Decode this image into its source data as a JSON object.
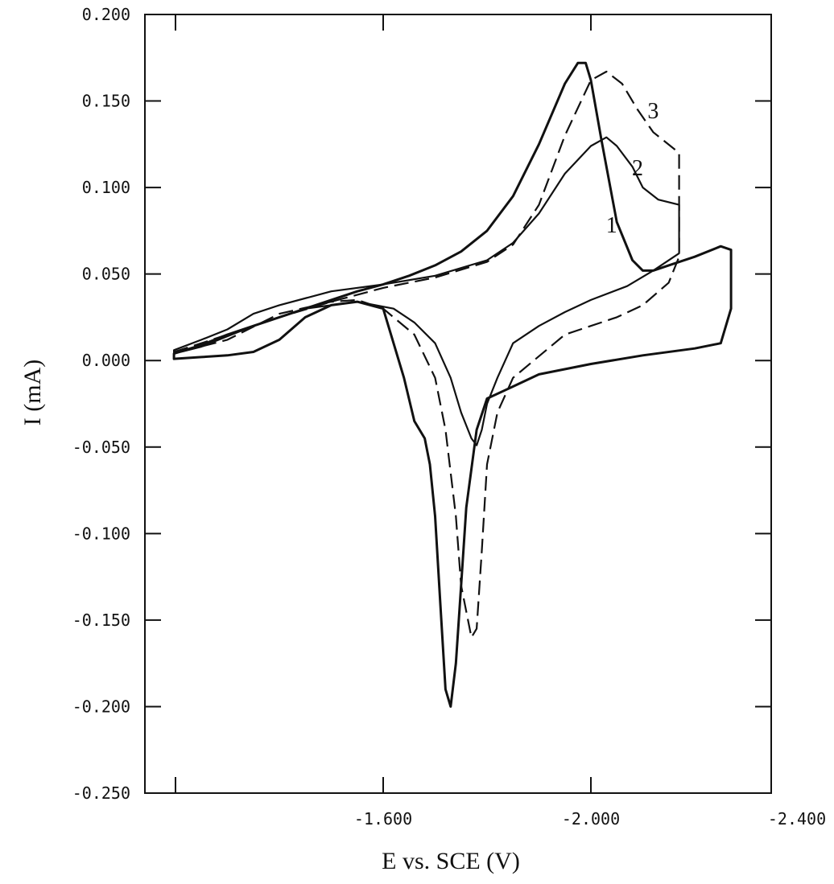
{
  "chart_data": {
    "type": "line",
    "title": "",
    "xlabel": "E vs. SCE (V)",
    "ylabel": "I (mA)",
    "xlim": [
      -1.2,
      -2.4
    ],
    "ylim": [
      -0.25,
      0.2
    ],
    "x_ticks": [
      -1.6,
      -2.0,
      -2.4
    ],
    "x_tick_labels": [
      "-1.600",
      "-2.000",
      "-2.400"
    ],
    "y_ticks": [
      0.2,
      0.15,
      0.1,
      0.05,
      0.0,
      -0.05,
      -0.1,
      -0.15,
      -0.2,
      -0.25
    ],
    "y_tick_labels": [
      "0.200",
      "0.150",
      "0.100",
      "0.050",
      "0.000",
      "-0.050",
      "-0.100",
      "-0.150",
      "-0.200",
      "-0.250"
    ],
    "grid": false,
    "series": [
      {
        "name": "1",
        "style": "solid",
        "color": "#111111",
        "x": [
          -1.197,
          -1.25,
          -1.3,
          -1.35,
          -1.4,
          -1.45,
          -1.5,
          -1.55,
          -1.6,
          -1.65,
          -1.7,
          -1.75,
          -1.8,
          -1.85,
          -1.9,
          -1.95,
          -1.975,
          -1.99,
          -2.0,
          -2.02,
          -2.05,
          -2.08,
          -2.1,
          -2.12,
          -2.15,
          -2.2,
          -2.25,
          -2.27,
          -2.27,
          -2.25,
          -2.2,
          -2.1,
          -2.0,
          -1.9,
          -1.85,
          -1.8,
          -1.78,
          -1.76,
          -1.75,
          -1.74,
          -1.73,
          -1.72,
          -1.71,
          -1.7,
          -1.69,
          -1.68,
          -1.66,
          -1.64,
          -1.6,
          -1.55,
          -1.5,
          -1.45,
          -1.4,
          -1.35,
          -1.3,
          -1.25,
          -1.197
        ],
        "y": [
          0.004,
          0.009,
          0.015,
          0.02,
          0.025,
          0.03,
          0.035,
          0.04,
          0.044,
          0.049,
          0.055,
          0.063,
          0.075,
          0.095,
          0.125,
          0.16,
          0.172,
          0.172,
          0.162,
          0.128,
          0.08,
          0.058,
          0.052,
          0.052,
          0.055,
          0.06,
          0.066,
          0.064,
          0.03,
          0.01,
          0.007,
          0.003,
          -0.002,
          -0.008,
          -0.015,
          -0.022,
          -0.04,
          -0.085,
          -0.13,
          -0.175,
          -0.2,
          -0.19,
          -0.14,
          -0.09,
          -0.06,
          -0.045,
          -0.035,
          -0.01,
          0.03,
          0.034,
          0.032,
          0.025,
          0.012,
          0.005,
          0.003,
          0.002,
          0.001
        ]
      },
      {
        "name": "2",
        "style": "solid",
        "color": "#111111",
        "x": [
          -1.197,
          -1.25,
          -1.3,
          -1.35,
          -1.4,
          -1.5,
          -1.6,
          -1.7,
          -1.8,
          -1.85,
          -1.9,
          -1.95,
          -2.0,
          -2.03,
          -2.05,
          -2.08,
          -2.1,
          -2.13,
          -2.17,
          -2.17,
          -2.12,
          -2.07,
          -2.0,
          -1.95,
          -1.9,
          -1.85,
          -1.82,
          -1.8,
          -1.79,
          -1.78,
          -1.77,
          -1.75,
          -1.73,
          -1.7,
          -1.66,
          -1.62,
          -1.55,
          -1.45,
          -1.35,
          -1.25,
          -1.197
        ],
        "y": [
          0.006,
          0.012,
          0.018,
          0.027,
          0.032,
          0.04,
          0.044,
          0.049,
          0.058,
          0.068,
          0.085,
          0.108,
          0.124,
          0.129,
          0.124,
          0.112,
          0.1,
          0.093,
          0.09,
          0.062,
          0.052,
          0.043,
          0.035,
          0.028,
          0.02,
          0.01,
          -0.01,
          -0.025,
          -0.04,
          -0.049,
          -0.045,
          -0.03,
          -0.01,
          0.01,
          0.022,
          0.03,
          0.034,
          0.03,
          0.02,
          0.008,
          0.004
        ]
      },
      {
        "name": "3",
        "style": "dashed",
        "color": "#111111",
        "x": [
          -1.197,
          -1.25,
          -1.3,
          -1.4,
          -1.5,
          -1.6,
          -1.7,
          -1.8,
          -1.85,
          -1.9,
          -1.95,
          -2.0,
          -2.03,
          -2.06,
          -2.09,
          -2.12,
          -2.17,
          -2.17,
          -2.15,
          -2.1,
          -2.05,
          -1.95,
          -1.85,
          -1.82,
          -1.8,
          -1.79,
          -1.78,
          -1.77,
          -1.76,
          -1.75,
          -1.74,
          -1.72,
          -1.7,
          -1.66,
          -1.6,
          -1.55,
          -1.5,
          -1.4,
          -1.3,
          -1.197
        ],
        "y": [
          0.005,
          0.01,
          0.015,
          0.025,
          0.034,
          0.042,
          0.048,
          0.057,
          0.067,
          0.09,
          0.13,
          0.162,
          0.167,
          0.16,
          0.145,
          0.132,
          0.12,
          0.06,
          0.045,
          0.032,
          0.025,
          0.015,
          -0.01,
          -0.03,
          -0.06,
          -0.11,
          -0.155,
          -0.16,
          -0.145,
          -0.13,
          -0.09,
          -0.04,
          -0.01,
          0.015,
          0.03,
          0.035,
          0.034,
          0.027,
          0.012,
          0.004
        ]
      }
    ],
    "curve_labels": [
      {
        "text": "1",
        "x": -2.04,
        "y": 0.074
      },
      {
        "text": "2",
        "x": -2.09,
        "y": 0.107
      },
      {
        "text": "3",
        "x": -2.12,
        "y": 0.14
      }
    ]
  }
}
